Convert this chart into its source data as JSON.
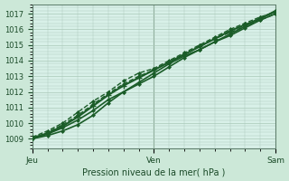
{
  "bg_color": "#cce8d8",
  "plot_bg_color": "#d8f0e8",
  "grid_color": "#aac8b8",
  "line_color": "#1a5c28",
  "marker_color": "#1a5c28",
  "xlabel": "Pression niveau de la mer( hPa )",
  "yticks": [
    1009,
    1010,
    1011,
    1012,
    1013,
    1014,
    1015,
    1016,
    1017
  ],
  "ylim": [
    1008.4,
    1017.6
  ],
  "xlim": [
    0,
    48
  ],
  "xtick_positions": [
    0,
    24,
    48
  ],
  "xtick_labels": [
    "Jeu",
    "Ven",
    "Sam"
  ],
  "lines": [
    {
      "x": [
        0,
        3,
        6,
        9,
        12,
        15,
        18,
        21,
        24,
        27,
        30,
        33,
        36,
        39,
        42,
        45,
        48
      ],
      "y": [
        1009.0,
        1009.3,
        1009.7,
        1010.2,
        1010.8,
        1011.5,
        1012.0,
        1012.5,
        1013.0,
        1013.6,
        1014.2,
        1014.7,
        1015.2,
        1015.6,
        1016.1,
        1016.6,
        1017.0
      ],
      "lw": 1.2,
      "marker": "D",
      "ms": 2.0,
      "ls": "-",
      "mew": 0.5
    },
    {
      "x": [
        0,
        3,
        6,
        9,
        12,
        15,
        18,
        21,
        24,
        27,
        30,
        33,
        36,
        39,
        42,
        45,
        48
      ],
      "y": [
        1009.0,
        1009.2,
        1009.5,
        1009.9,
        1010.5,
        1011.3,
        1012.0,
        1012.6,
        1013.2,
        1013.8,
        1014.3,
        1014.7,
        1015.2,
        1015.7,
        1016.2,
        1016.7,
        1017.2
      ],
      "lw": 1.2,
      "marker": "D",
      "ms": 2.0,
      "ls": "-",
      "mew": 0.5
    },
    {
      "x": [
        0,
        3,
        6,
        9,
        12,
        15,
        18,
        21,
        24,
        27,
        30,
        33,
        36,
        39,
        42,
        45,
        48
      ],
      "y": [
        1009.1,
        1009.5,
        1010.0,
        1010.7,
        1011.4,
        1012.0,
        1012.7,
        1013.2,
        1013.5,
        1014.0,
        1014.5,
        1015.0,
        1015.5,
        1016.0,
        1016.4,
        1016.8,
        1017.1
      ],
      "lw": 1.0,
      "marker": "D",
      "ms": 2.0,
      "ls": "--",
      "mew": 0.5
    },
    {
      "x": [
        0,
        3,
        6,
        9,
        12,
        15,
        18,
        21,
        24,
        27,
        30,
        33,
        36,
        39,
        42,
        45,
        48
      ],
      "y": [
        1009.0,
        1009.4,
        1009.9,
        1010.5,
        1011.2,
        1011.9,
        1012.5,
        1013.0,
        1013.4,
        1013.9,
        1014.4,
        1014.9,
        1015.4,
        1015.8,
        1016.2,
        1016.6,
        1017.0
      ],
      "lw": 1.0,
      "marker": "D",
      "ms": 2.0,
      "ls": "--",
      "mew": 0.5
    },
    {
      "x": [
        0,
        3,
        6,
        9,
        12,
        15,
        18,
        21,
        24,
        27,
        30,
        33,
        36,
        39,
        42,
        45,
        48
      ],
      "y": [
        1009.05,
        1009.35,
        1009.8,
        1010.4,
        1011.1,
        1011.8,
        1012.4,
        1012.9,
        1013.4,
        1013.9,
        1014.4,
        1014.9,
        1015.4,
        1015.9,
        1016.3,
        1016.7,
        1017.15
      ],
      "lw": 1.5,
      "marker": "+",
      "ms": 4.0,
      "ls": "-",
      "mew": 1.0
    }
  ]
}
